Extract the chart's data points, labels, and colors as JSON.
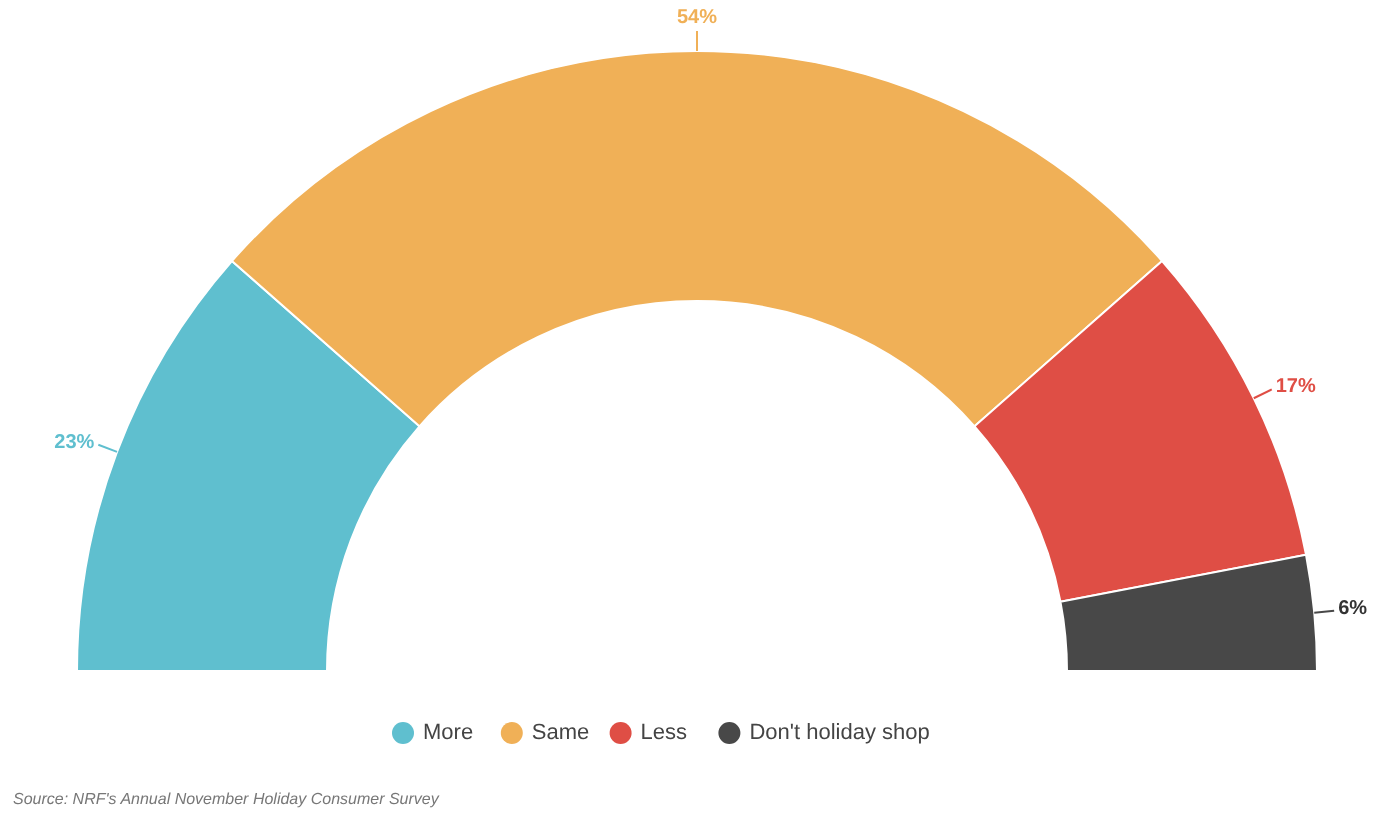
{
  "chart_data": {
    "type": "donut",
    "categories": [
      "More",
      "Same",
      "Less",
      "Don't holiday shop"
    ],
    "values": [
      23,
      54,
      17,
      6
    ],
    "colors": [
      "#5fbfcf",
      "#f0b057",
      "#df4e45",
      "#484848"
    ],
    "value_labels": [
      "23%",
      "54%",
      "17%",
      "6%"
    ],
    "legend": "bottom",
    "annotations": [
      "Source:  NRF's Annual November Holiday Consumer Survey"
    ]
  }
}
